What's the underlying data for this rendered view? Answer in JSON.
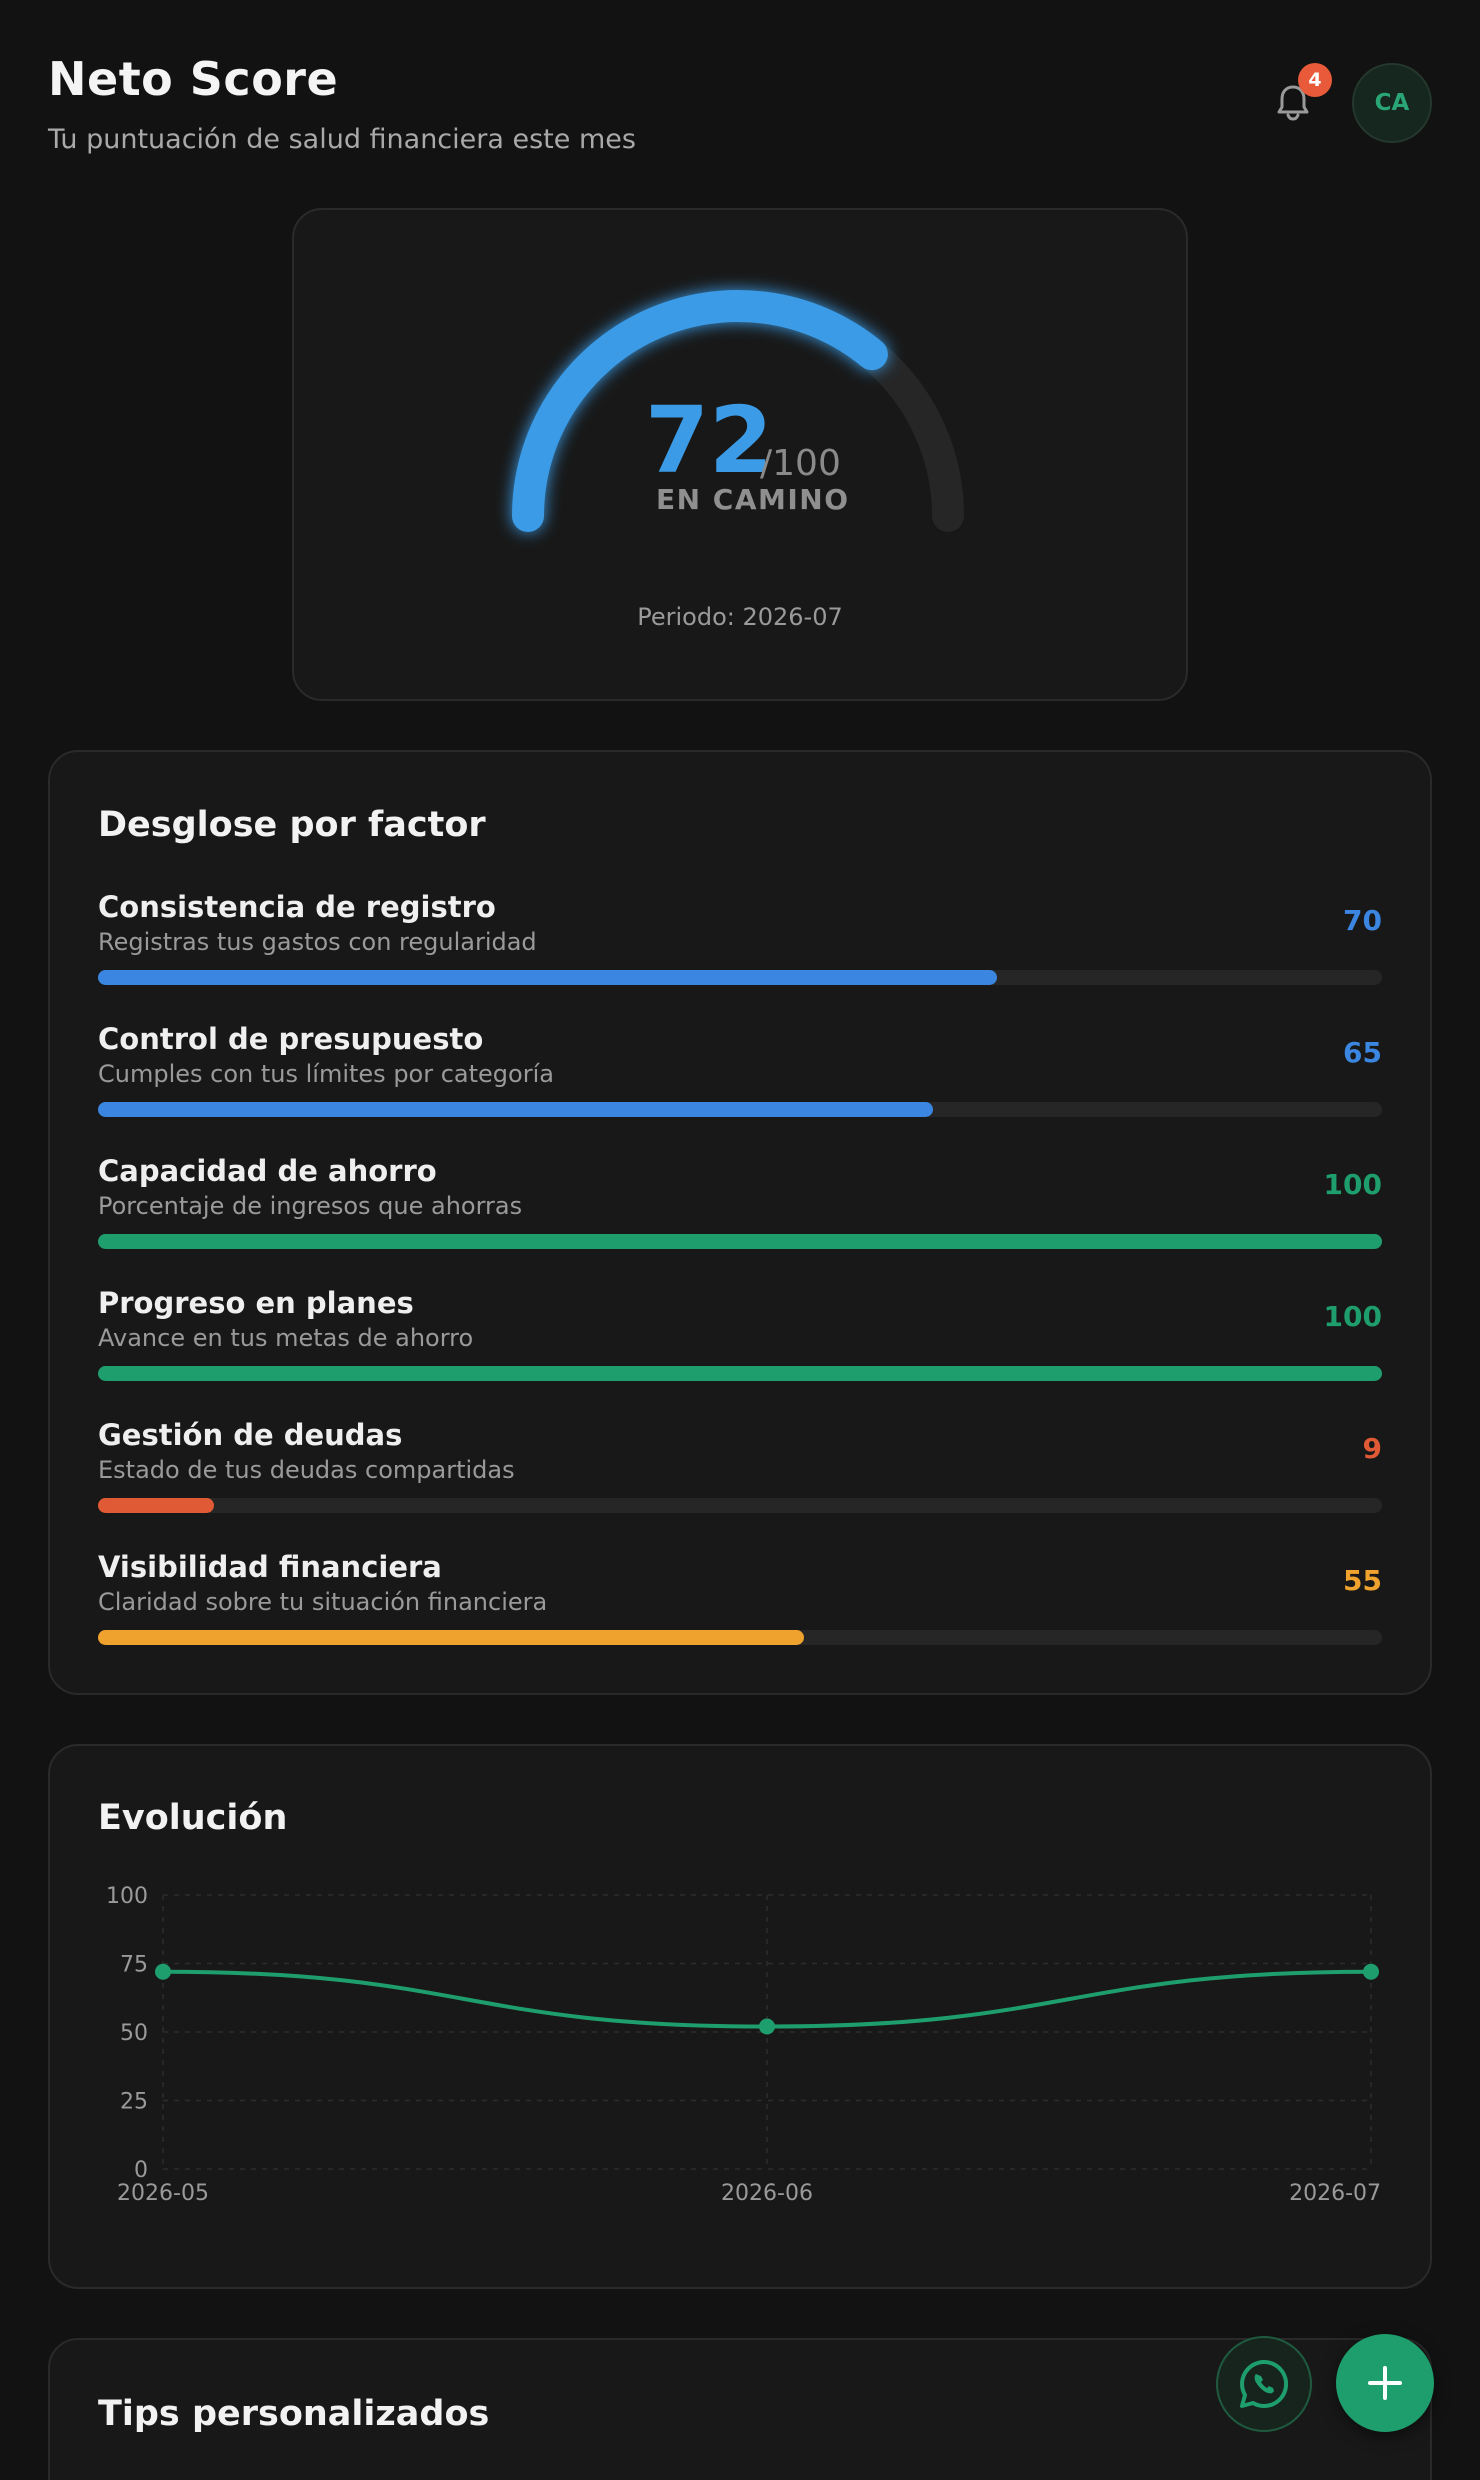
{
  "header": {
    "title": "Neto Score",
    "subtitle": "Tu puntuación de salud financiera este mes",
    "notification_count": "4",
    "avatar_initials": "CA"
  },
  "score": {
    "value": "72",
    "max": "/100",
    "status": "EN CAMINO",
    "period": "Periodo: 2026-07",
    "fraction": 0.72,
    "color": "#3b9be6"
  },
  "breakdown": {
    "title": "Desglose por factor",
    "factors": [
      {
        "name": "Consistencia de registro",
        "desc": "Registras tus gastos con regularidad",
        "value": "70",
        "percent": 70,
        "color": "#3b86e0"
      },
      {
        "name": "Control de presupuesto",
        "desc": "Cumples con tus límites por categoría",
        "value": "65",
        "percent": 65,
        "color": "#3b86e0"
      },
      {
        "name": "Capacidad de ahorro",
        "desc": "Porcentaje de ingresos que ahorras",
        "value": "100",
        "percent": 100,
        "color": "#1f9e6d"
      },
      {
        "name": "Progreso en planes",
        "desc": "Avance en tus metas de ahorro",
        "value": "100",
        "percent": 100,
        "color": "#1f9e6d"
      },
      {
        "name": "Gestión de deudas",
        "desc": "Estado de tus deudas compartidas",
        "value": "9",
        "percent": 9,
        "color": "#e05a35"
      },
      {
        "name": "Visibilidad financiera",
        "desc": "Claridad sobre tu situación financiera",
        "value": "55",
        "percent": 55,
        "color": "#f0a22e"
      }
    ]
  },
  "evolution": {
    "title": "Evolución"
  },
  "tips": {
    "title": "Tips personalizados"
  },
  "actions": {
    "whatsapp_icon": "whatsapp-icon",
    "add_icon": "plus-icon"
  },
  "chart_data": {
    "type": "line",
    "x": [
      "2026-05",
      "2026-06",
      "2026-07"
    ],
    "series": [
      {
        "values": [
          72,
          52,
          72
        ],
        "color": "#1f9e6d"
      }
    ],
    "yticks": [
      0,
      25,
      50,
      75,
      100
    ],
    "ylim": [
      0,
      100
    ],
    "grid": true,
    "title": "",
    "xlabel": "",
    "ylabel": ""
  }
}
